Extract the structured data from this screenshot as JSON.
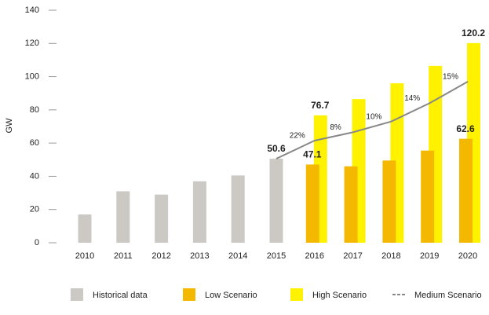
{
  "chart_data": {
    "type": "bar",
    "y_label": "GW",
    "categories": [
      "2010",
      "2011",
      "2012",
      "2013",
      "2014",
      "2015",
      "2016",
      "2017",
      "2018",
      "2019",
      "2020"
    ],
    "series": [
      {
        "name": "Historical data",
        "color": "#ccc8c4",
        "type": "bar",
        "values": [
          17,
          31,
          29,
          37,
          40.5,
          50.6,
          null,
          null,
          null,
          null,
          null
        ],
        "value_labels": [
          null,
          null,
          null,
          null,
          null,
          "50.6",
          null,
          null,
          null,
          null,
          null
        ]
      },
      {
        "name": "Low Scenario",
        "color": "#f5b800",
        "type": "bar",
        "values": [
          null,
          null,
          null,
          null,
          null,
          null,
          47.1,
          46,
          49.5,
          55.5,
          62.6
        ],
        "value_labels": [
          null,
          null,
          null,
          null,
          null,
          null,
          "47.1",
          null,
          null,
          null,
          "62.6"
        ]
      },
      {
        "name": "High Scenario",
        "color": "#fff200",
        "type": "bar",
        "values": [
          null,
          null,
          null,
          null,
          null,
          null,
          76.7,
          86.5,
          96,
          106.5,
          120.2
        ],
        "value_labels": [
          null,
          null,
          null,
          null,
          null,
          null,
          "76.7",
          null,
          null,
          null,
          "120.2"
        ]
      },
      {
        "name": "Medium Scenario",
        "color": "#888888",
        "type": "line",
        "values": [
          null,
          null,
          null,
          null,
          null,
          50.6,
          61.5,
          66.5,
          73,
          84,
          97
        ],
        "annotations": [
          null,
          null,
          null,
          null,
          null,
          null,
          "22%",
          "8%",
          "10%",
          "14%",
          "15%"
        ]
      }
    ],
    "ylim": [
      0,
      140
    ],
    "yticks": [
      0,
      20,
      40,
      60,
      80,
      100,
      120,
      140
    ],
    "grid": false
  }
}
